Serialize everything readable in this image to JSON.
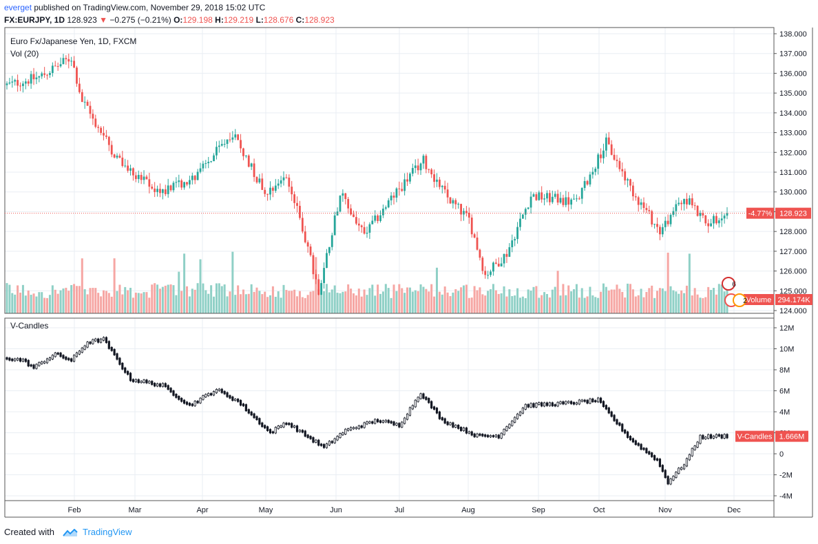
{
  "header": {
    "user": "everget",
    "published_text": "published on TradingView.com, November 29, 2018 15:02 UTC",
    "symbol": "FX:EURJPY, 1D",
    "last": "128.923",
    "change": "−0.275 (−0.21%)",
    "o_label": "O:",
    "o_value": "129.198",
    "h_label": "H:",
    "h_value": "129.219",
    "l_label": "L:",
    "l_value": "128.676",
    "c_label": "C:",
    "c_value": "128.923"
  },
  "colors": {
    "up": "#26a69a",
    "down": "#ef5350",
    "vol_up": "#8fd0c6",
    "vol_down": "#f6a6a3",
    "grid": "#e9eef3",
    "axis_text": "#131722"
  },
  "chart_data": [
    {
      "type": "candlestick",
      "title": "Euro Fx/Japanese Yen, 1D, FXCM",
      "volume_label": "Vol (20)",
      "y_ticks": [
        "138.000",
        "137.000",
        "136.000",
        "135.000",
        "134.000",
        "133.000",
        "132.000",
        "131.000",
        "130.000",
        "129.000",
        "128.000",
        "127.000",
        "126.000",
        "125.000",
        "124.000"
      ],
      "ylim": [
        124,
        138
      ],
      "x_ticks": [
        "Feb",
        "Mar",
        "Apr",
        "May",
        "Jun",
        "Jul",
        "Aug",
        "Sep",
        "Oct",
        "Nov",
        "Dec"
      ],
      "anchors": [
        {
          "day": 0,
          "value": 135.4
        },
        {
          "day": 12,
          "value": 135.8
        },
        {
          "day": 24,
          "value": 136.8
        },
        {
          "day": 28,
          "value": 134.6
        },
        {
          "day": 42,
          "value": 131.5
        },
        {
          "day": 56,
          "value": 130.0
        },
        {
          "day": 70,
          "value": 130.7
        },
        {
          "day": 84,
          "value": 133.0
        },
        {
          "day": 96,
          "value": 130.0
        },
        {
          "day": 104,
          "value": 130.8
        },
        {
          "day": 110,
          "value": 128.2
        },
        {
          "day": 116,
          "value": 124.9
        },
        {
          "day": 124,
          "value": 129.9
        },
        {
          "day": 133,
          "value": 127.8
        },
        {
          "day": 145,
          "value": 130.0
        },
        {
          "day": 155,
          "value": 131.6
        },
        {
          "day": 164,
          "value": 129.7
        },
        {
          "day": 172,
          "value": 128.6
        },
        {
          "day": 178,
          "value": 125.8
        },
        {
          "day": 186,
          "value": 126.9
        },
        {
          "day": 195,
          "value": 129.8
        },
        {
          "day": 212,
          "value": 129.5
        },
        {
          "day": 223,
          "value": 132.5
        },
        {
          "day": 233,
          "value": 130.0
        },
        {
          "day": 243,
          "value": 128.0
        },
        {
          "day": 252,
          "value": 129.8
        },
        {
          "day": 260,
          "value": 128.4
        },
        {
          "day": 268,
          "value": 128.9
        }
      ],
      "volume_spikes": [
        28,
        40,
        64,
        66,
        72,
        84,
        115,
        160,
        205,
        246,
        254
      ],
      "last_change": "-4.77%",
      "last_price": "128.923",
      "volume_tag": "Volume",
      "volume_value": "294.174K",
      "event_labels": [
        "6",
        "5",
        "2"
      ]
    },
    {
      "type": "candlestick",
      "title": "V-Candles",
      "y_ticks": [
        "12M",
        "10M",
        "8M",
        "6M",
        "4M",
        "2M",
        "0",
        "-2M",
        "-4M"
      ],
      "ylim": [
        -4.0,
        12.0
      ],
      "anchors": [
        {
          "day": 0,
          "value": 9.1
        },
        {
          "day": 6,
          "value": 8.9
        },
        {
          "day": 10,
          "value": 8.2
        },
        {
          "day": 18,
          "value": 9.5
        },
        {
          "day": 24,
          "value": 8.9
        },
        {
          "day": 30,
          "value": 10.6
        },
        {
          "day": 36,
          "value": 10.9
        },
        {
          "day": 46,
          "value": 7.1
        },
        {
          "day": 58,
          "value": 6.5
        },
        {
          "day": 68,
          "value": 4.6
        },
        {
          "day": 78,
          "value": 6.1
        },
        {
          "day": 86,
          "value": 5.0
        },
        {
          "day": 98,
          "value": 2.0
        },
        {
          "day": 104,
          "value": 3.0
        },
        {
          "day": 118,
          "value": 0.6
        },
        {
          "day": 126,
          "value": 2.2
        },
        {
          "day": 138,
          "value": 3.2
        },
        {
          "day": 146,
          "value": 2.7
        },
        {
          "day": 154,
          "value": 5.8
        },
        {
          "day": 162,
          "value": 3.2
        },
        {
          "day": 175,
          "value": 1.7
        },
        {
          "day": 183,
          "value": 1.7
        },
        {
          "day": 193,
          "value": 4.6
        },
        {
          "day": 208,
          "value": 4.8
        },
        {
          "day": 220,
          "value": 5.1
        },
        {
          "day": 232,
          "value": 1.4
        },
        {
          "day": 242,
          "value": -0.6
        },
        {
          "day": 246,
          "value": -2.7
        },
        {
          "day": 252,
          "value": -1.0
        },
        {
          "day": 258,
          "value": 1.6
        },
        {
          "day": 268,
          "value": 1.7
        }
      ],
      "last_tag": "V-Candles",
      "last_value": "1.666M"
    }
  ],
  "footer": {
    "created_with": "Created with",
    "brand": "TradingView"
  }
}
